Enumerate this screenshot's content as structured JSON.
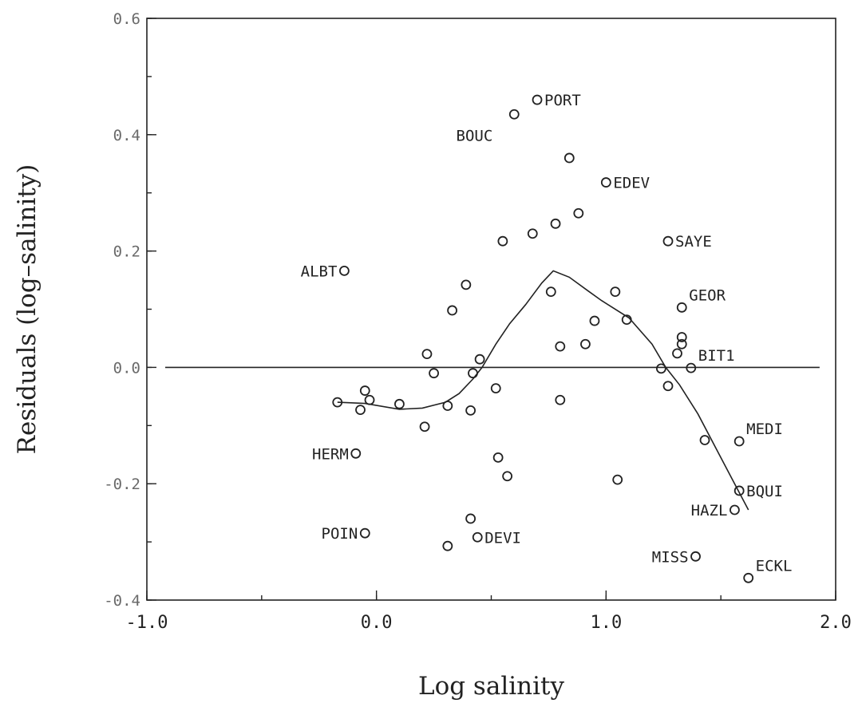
{
  "chart_data": {
    "type": "scatter",
    "xlabel": "Log salinity",
    "ylabel": "Residuals (log–salinity)",
    "xlim": [
      -1.0,
      2.0
    ],
    "ylim": [
      -0.4,
      0.6
    ],
    "x_ticks": [
      -1.0,
      0.0,
      1.0,
      2.0
    ],
    "x_tick_labels": [
      "-1.0",
      "0.0",
      "1.0",
      "2.0"
    ],
    "y_ticks": [
      -0.4,
      -0.2,
      0.0,
      0.2,
      0.4,
      0.6
    ],
    "y_tick_labels": [
      "-0.4",
      "-0.2",
      "0.0",
      "0.2",
      "0.4",
      "0.6"
    ],
    "grid": false,
    "reference_line_y": 0.0,
    "reference_line_x_range": [
      -0.92,
      1.93
    ],
    "points": [
      {
        "x": 0.7,
        "y": 0.46,
        "label": "PORT",
        "label_pos": "right"
      },
      {
        "x": 0.6,
        "y": 0.435,
        "label": "BOUC",
        "label_pos": "below-left"
      },
      {
        "x": 0.84,
        "y": 0.36
      },
      {
        "x": 1.0,
        "y": 0.318,
        "label": "EDEV",
        "label_pos": "right"
      },
      {
        "x": 0.88,
        "y": 0.265
      },
      {
        "x": 0.78,
        "y": 0.247
      },
      {
        "x": 0.68,
        "y": 0.23
      },
      {
        "x": 0.55,
        "y": 0.217
      },
      {
        "x": 1.27,
        "y": 0.217,
        "label": "SAYE",
        "label_pos": "right"
      },
      {
        "x": -0.14,
        "y": 0.166,
        "label": "ALBT",
        "label_pos": "left"
      },
      {
        "x": 0.39,
        "y": 0.142
      },
      {
        "x": 0.76,
        "y": 0.13
      },
      {
        "x": 1.04,
        "y": 0.13
      },
      {
        "x": 1.33,
        "y": 0.103,
        "label": "GEOR",
        "label_pos": "above-right"
      },
      {
        "x": 0.33,
        "y": 0.098
      },
      {
        "x": 1.09,
        "y": 0.082
      },
      {
        "x": 0.95,
        "y": 0.08
      },
      {
        "x": 1.33,
        "y": 0.052
      },
      {
        "x": 1.33,
        "y": 0.04
      },
      {
        "x": 0.91,
        "y": 0.04
      },
      {
        "x": 0.8,
        "y": 0.036
      },
      {
        "x": 1.31,
        "y": 0.024
      },
      {
        "x": 0.22,
        "y": 0.023
      },
      {
        "x": 0.45,
        "y": 0.014
      },
      {
        "x": 1.24,
        "y": -0.002
      },
      {
        "x": 1.37,
        "y": -0.001,
        "label": "BIT1",
        "label_pos": "above-right"
      },
      {
        "x": 0.25,
        "y": -0.01
      },
      {
        "x": 0.42,
        "y": -0.01
      },
      {
        "x": 1.27,
        "y": -0.032
      },
      {
        "x": 0.52,
        "y": -0.036
      },
      {
        "x": -0.05,
        "y": -0.04
      },
      {
        "x": 0.8,
        "y": -0.056
      },
      {
        "x": -0.03,
        "y": -0.056
      },
      {
        "x": -0.17,
        "y": -0.06
      },
      {
        "x": 0.1,
        "y": -0.063
      },
      {
        "x": 0.31,
        "y": -0.066
      },
      {
        "x": -0.07,
        "y": -0.073
      },
      {
        "x": 0.41,
        "y": -0.074
      },
      {
        "x": 0.21,
        "y": -0.102
      },
      {
        "x": 1.43,
        "y": -0.125
      },
      {
        "x": 1.58,
        "y": -0.127,
        "label": "MEDI",
        "label_pos": "above-right"
      },
      {
        "x": -0.09,
        "y": -0.148,
        "label": "HERM",
        "label_pos": "left"
      },
      {
        "x": 0.53,
        "y": -0.155
      },
      {
        "x": 0.57,
        "y": -0.187
      },
      {
        "x": 1.05,
        "y": -0.193
      },
      {
        "x": 1.58,
        "y": -0.212,
        "label": "BQUI",
        "label_pos": "right"
      },
      {
        "x": 1.56,
        "y": -0.245,
        "label": "HAZL",
        "label_pos": "left"
      },
      {
        "x": 0.41,
        "y": -0.26
      },
      {
        "x": -0.05,
        "y": -0.285,
        "label": "POIN",
        "label_pos": "left"
      },
      {
        "x": 0.44,
        "y": -0.292,
        "label": "DEVI",
        "label_pos": "right"
      },
      {
        "x": 0.31,
        "y": -0.307
      },
      {
        "x": 1.39,
        "y": -0.325,
        "label": "MISS",
        "label_pos": "left"
      },
      {
        "x": 1.62,
        "y": -0.362,
        "label": "ECKL",
        "label_pos": "above-right"
      }
    ],
    "smooth_curve": [
      [
        -0.17,
        -0.06
      ],
      [
        -0.05,
        -0.062
      ],
      [
        0.1,
        -0.072
      ],
      [
        0.2,
        -0.07
      ],
      [
        0.3,
        -0.06
      ],
      [
        0.36,
        -0.045
      ],
      [
        0.42,
        -0.02
      ],
      [
        0.46,
        0.0
      ],
      [
        0.52,
        0.04
      ],
      [
        0.58,
        0.075
      ],
      [
        0.65,
        0.108
      ],
      [
        0.72,
        0.145
      ],
      [
        0.77,
        0.166
      ],
      [
        0.84,
        0.155
      ],
      [
        0.92,
        0.132
      ],
      [
        0.98,
        0.115
      ],
      [
        1.1,
        0.085
      ],
      [
        1.2,
        0.04
      ],
      [
        1.26,
        0.0
      ],
      [
        1.32,
        -0.03
      ],
      [
        1.4,
        -0.08
      ],
      [
        1.48,
        -0.14
      ],
      [
        1.56,
        -0.2
      ],
      [
        1.62,
        -0.245
      ]
    ]
  }
}
